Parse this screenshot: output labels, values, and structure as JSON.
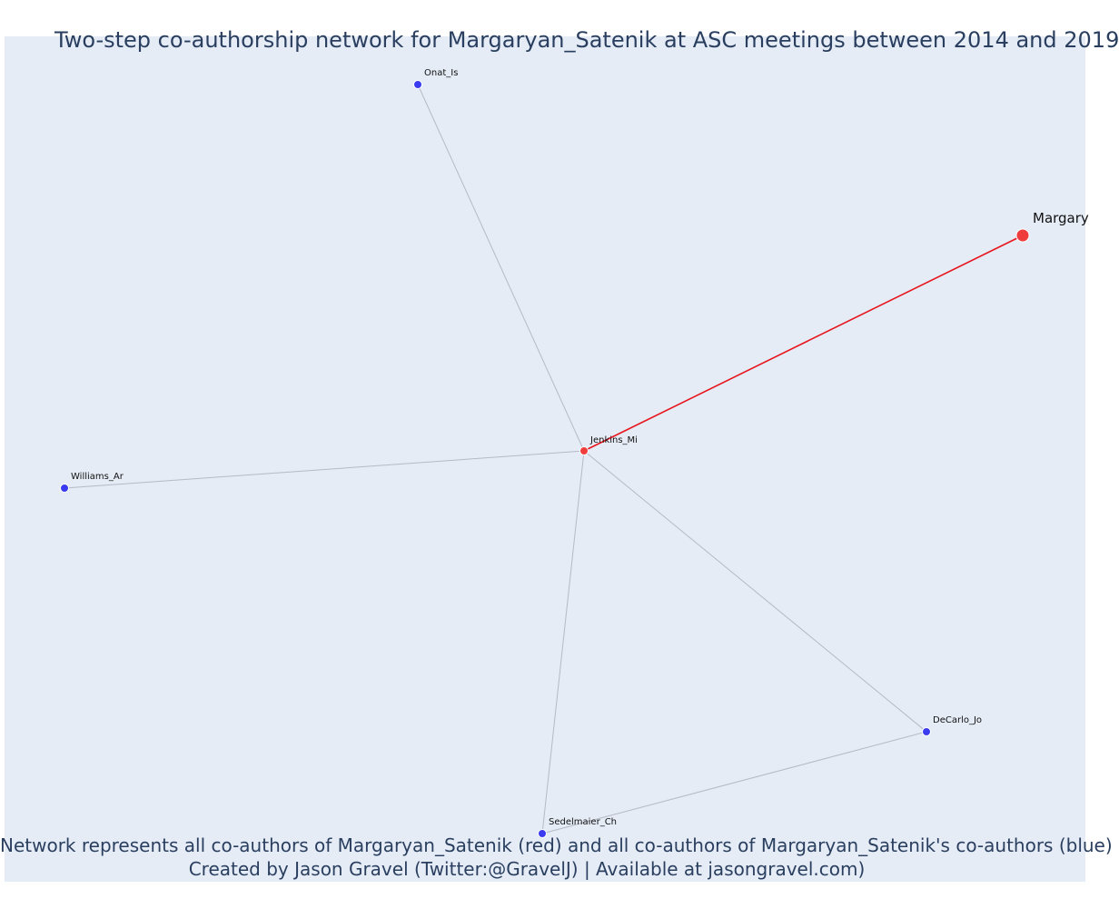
{
  "title": "Two-step co-authorship network for Margaryan_Satenik at ASC meetings between 2014 and 2019",
  "caption_line1": "Network represents all co-authors of Margaryan_Satenik (red) and all co-authors of Margaryan_Satenik's co-authors (blue)",
  "caption_line2": "Created by Jason Gravel (Twitter:@GravelJ) | Available at jasongravel.com)",
  "colors": {
    "ego": "#ef3d3d",
    "coauthor": "#ef3d3d",
    "second_step": "#3b3bef",
    "ego_edge": "#e8141c",
    "edge": "#b6b9c6",
    "plot_background": "#e5ecf6",
    "text": "#2a3f5f"
  },
  "nodes": [
    {
      "id": "Margaryan_Satenik",
      "label": "Margary",
      "group": "ego"
    },
    {
      "id": "Jenkins_Mi",
      "label": "Jenkins_Mi",
      "group": "coauthor"
    },
    {
      "id": "Onat_Is",
      "label": "Onat_Is",
      "group": "second_step"
    },
    {
      "id": "Williams_Ar",
      "label": "Williams_Ar",
      "group": "second_step"
    },
    {
      "id": "DeCarlo_Jo",
      "label": "DeCarlo_Jo",
      "group": "second_step"
    },
    {
      "id": "Sedelmaier_Ch",
      "label": "Sedelmaier_Ch",
      "group": "second_step"
    }
  ],
  "edges": [
    {
      "source": "Margaryan_Satenik",
      "target": "Jenkins_Mi",
      "type": "ego"
    },
    {
      "source": "Jenkins_Mi",
      "target": "Onat_Is",
      "type": "normal"
    },
    {
      "source": "Jenkins_Mi",
      "target": "Williams_Ar",
      "type": "normal"
    },
    {
      "source": "Jenkins_Mi",
      "target": "DeCarlo_Jo",
      "type": "normal"
    },
    {
      "source": "Jenkins_Mi",
      "target": "Sedelmaier_Ch",
      "type": "normal"
    },
    {
      "source": "DeCarlo_Jo",
      "target": "Sedelmaier_Ch",
      "type": "normal"
    }
  ]
}
